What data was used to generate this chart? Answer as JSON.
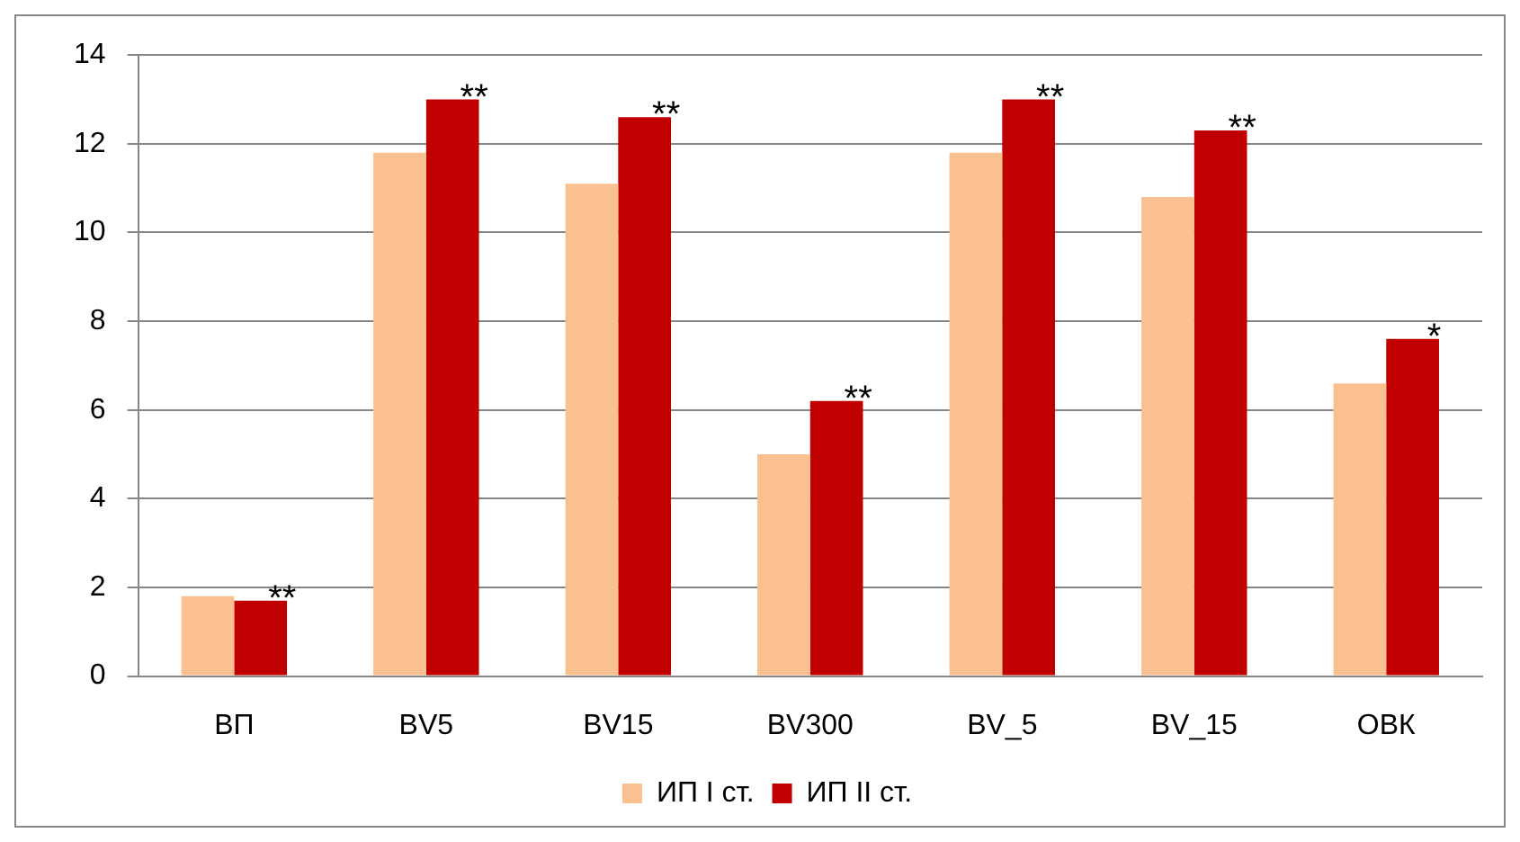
{
  "chart_data": {
    "type": "bar",
    "categories": [
      "ВП",
      "BV5",
      "BV15",
      "BV300",
      "BV_5",
      "BV_15",
      "ОВК"
    ],
    "series": [
      {
        "name": "ИП I ст.",
        "color": "#fac090",
        "values": [
          1.8,
          11.8,
          11.1,
          5.0,
          11.8,
          10.8,
          6.6
        ]
      },
      {
        "name": "ИП II ст.",
        "color": "#c00000",
        "values": [
          1.7,
          13.0,
          12.6,
          6.2,
          13.0,
          12.3,
          7.6
        ]
      }
    ],
    "ylim": [
      0,
      14
    ],
    "yticks": [
      0,
      2,
      4,
      6,
      8,
      10,
      12,
      14
    ],
    "grid": "y",
    "legend": "bottom",
    "annotations": [
      {
        "text": "**",
        "x": "ВП",
        "y": 1.7
      },
      {
        "text": "**",
        "x": "BV5",
        "y": 13.0
      },
      {
        "text": "**",
        "x": "BV15",
        "y": 12.6
      },
      {
        "text": "**",
        "x": "BV300",
        "y": 6.2
      },
      {
        "text": "**",
        "x": "BV_5",
        "y": 13.0
      },
      {
        "text": "**",
        "x": "BV_15",
        "y": 12.3
      },
      {
        "text": "*",
        "x": "ОВК",
        "y": 7.6
      }
    ]
  }
}
